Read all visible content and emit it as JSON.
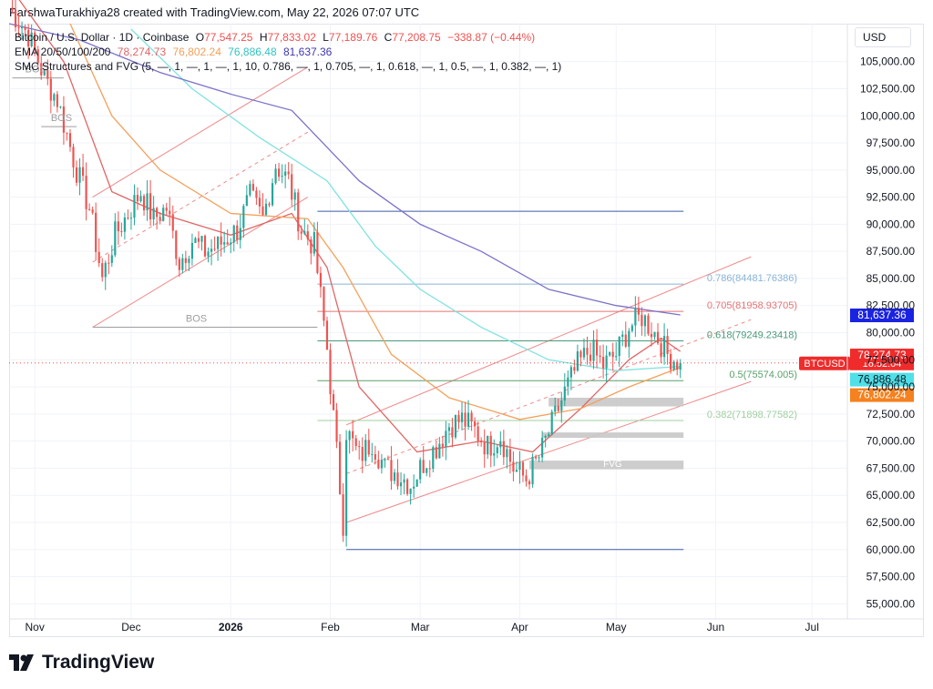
{
  "caption": "ParshwaTurakhiya28 created with TradingView.com, May 22, 2026 07:07 UTC",
  "legend": {
    "symbol": "Bitcoin / U.S. Dollar · 1D · Coinbase",
    "open_label": "O",
    "open": "77,547.25",
    "high_label": "H",
    "high": "77,833.02",
    "low_label": "L",
    "low": "77,189.76",
    "close_label": "C",
    "close": "77,208.75",
    "change": "−338.87 (−0.44%)",
    "ema_label": "EMA 20/50/100/200",
    "ema20": "78,274.73",
    "ema50": "76,802.24",
    "ema100": "76,886.48",
    "ema200": "81,637.36",
    "smc": "SMC Structures and FVG (5, —, 1, —, 1, —, 1, 10, 0.786, —, 1, 0.705, —, 1, 0.618, —, 1, 0.5, —, 1, 0.382, —, 1)"
  },
  "currency": "USD",
  "brand": "TradingView",
  "colors": {
    "up": "#26a69a",
    "down": "#ef5350",
    "ema20": "#e06666",
    "ema50": "#f5a05a",
    "ema100": "#7fe3e0",
    "ema200": "#7b72c9",
    "channel": "#ef8a8a",
    "fib786": "#8ab4d8",
    "fib705": "#e57373",
    "fib618": "#4a9a78",
    "fib5": "#5aa06a",
    "fib382": "#9fcf9f",
    "bos": "#9e9e9e",
    "fvg": "#c8c8c8",
    "blue_line": "#3f5aa8"
  },
  "chart_data": {
    "type": "candlestick",
    "title": "Bitcoin / U.S. Dollar · 1D · Coinbase",
    "x_range": [
      "2025-10-24",
      "2026-07-12"
    ],
    "y_range": [
      53600,
      108500
    ],
    "y_ticks": [
      55000,
      57500,
      60000,
      62500,
      65000,
      67500,
      70000,
      72500,
      75000,
      77500,
      80000,
      82500,
      85000,
      87500,
      90000,
      92500,
      95000,
      97500,
      100000,
      102500,
      105000
    ],
    "y_tick_labels": [
      "55,000.00",
      "57,500.00",
      "60,000.00",
      "62,500.00",
      "65,000.00",
      "67,500.00",
      "70,000.00",
      "72,500.00",
      "75,000.00",
      "77,500.00",
      "80,000.00",
      "82,500.00",
      "85,000.00",
      "87,500.00",
      "90,000.00",
      "92,500.00",
      "95,000.00",
      "97,500.00",
      "100,000.00",
      "102,500.00",
      "105,000.00"
    ],
    "x_ticks": [
      {
        "date": "2025-11-01",
        "label": "Nov"
      },
      {
        "date": "2025-12-01",
        "label": "Dec"
      },
      {
        "date": "2026-01-01",
        "label": "2026"
      },
      {
        "date": "2026-02-01",
        "label": "Feb"
      },
      {
        "date": "2026-03-01",
        "label": "Mar"
      },
      {
        "date": "2026-04-01",
        "label": "Apr"
      },
      {
        "date": "2026-05-01",
        "label": "May"
      },
      {
        "date": "2026-06-01",
        "label": "Jun"
      },
      {
        "date": "2026-07-01",
        "label": "Jul"
      }
    ],
    "close_path": [
      [
        "2025-10-24",
        110000
      ],
      [
        "2025-10-30",
        107500
      ],
      [
        "2025-11-04",
        103500
      ],
      [
        "2025-11-08",
        101500
      ],
      [
        "2025-11-14",
        95000
      ],
      [
        "2025-11-18",
        91500
      ],
      [
        "2025-11-22",
        85000
      ],
      [
        "2025-11-26",
        89000
      ],
      [
        "2025-11-30",
        91000
      ],
      [
        "2025-12-04",
        93000
      ],
      [
        "2025-12-08",
        90500
      ],
      [
        "2025-12-12",
        91500
      ],
      [
        "2025-12-16",
        86500
      ],
      [
        "2025-12-20",
        88500
      ],
      [
        "2025-12-24",
        87500
      ],
      [
        "2025-12-28",
        88000
      ],
      [
        "2026-01-03",
        89500
      ],
      [
        "2026-01-07",
        92500
      ],
      [
        "2026-01-11",
        90500
      ],
      [
        "2026-01-15",
        95500
      ],
      [
        "2026-01-19",
        94000
      ],
      [
        "2026-01-23",
        89500
      ],
      [
        "2026-01-27",
        88000
      ],
      [
        "2026-01-31",
        78500
      ],
      [
        "2026-02-05",
        62500
      ],
      [
        "2026-02-06",
        71000
      ],
      [
        "2026-02-10",
        68500
      ],
      [
        "2026-02-14",
        70000
      ],
      [
        "2026-02-18",
        67500
      ],
      [
        "2026-02-22",
        67000
      ],
      [
        "2026-02-26",
        66000
      ],
      [
        "2026-03-02",
        68000
      ],
      [
        "2026-03-06",
        69500
      ],
      [
        "2026-03-10",
        71500
      ],
      [
        "2026-03-14",
        72000
      ],
      [
        "2026-03-18",
        71000
      ],
      [
        "2026-03-22",
        69500
      ],
      [
        "2026-03-26",
        70500
      ],
      [
        "2026-03-30",
        67500
      ],
      [
        "2026-04-03",
        66500
      ],
      [
        "2026-04-07",
        68500
      ],
      [
        "2026-04-11",
        71500
      ],
      [
        "2026-04-15",
        74500
      ],
      [
        "2026-04-19",
        77000
      ],
      [
        "2026-04-23",
        78500
      ],
      [
        "2026-04-27",
        77000
      ],
      [
        "2026-05-01",
        78000
      ],
      [
        "2026-05-05",
        80500
      ],
      [
        "2026-05-09",
        81500
      ],
      [
        "2026-05-13",
        80000
      ],
      [
        "2026-05-17",
        78000
      ],
      [
        "2026-05-21",
        77208.75
      ]
    ],
    "emas": [
      {
        "name": "EMA 20",
        "last": 78274.73,
        "points": [
          [
            "2025-10-24",
            112000
          ],
          [
            "2025-11-10",
            105000
          ],
          [
            "2025-11-25",
            93000
          ],
          [
            "2025-12-10",
            91000
          ],
          [
            "2026-01-01",
            89000
          ],
          [
            "2026-01-20",
            91000
          ],
          [
            "2026-01-31",
            86000
          ],
          [
            "2026-02-10",
            75000
          ],
          [
            "2026-02-28",
            69000
          ],
          [
            "2026-03-20",
            70000
          ],
          [
            "2026-04-05",
            69000
          ],
          [
            "2026-04-20",
            73000
          ],
          [
            "2026-05-05",
            77500
          ],
          [
            "2026-05-15",
            79500
          ],
          [
            "2026-05-21",
            78274.73
          ]
        ]
      },
      {
        "name": "EMA 50",
        "last": 76802.24,
        "points": [
          [
            "2025-11-12",
            108500
          ],
          [
            "2025-11-25",
            100000
          ],
          [
            "2025-12-10",
            95000
          ],
          [
            "2026-01-01",
            91000
          ],
          [
            "2026-01-25",
            90500
          ],
          [
            "2026-02-05",
            86000
          ],
          [
            "2026-02-20",
            78000
          ],
          [
            "2026-03-10",
            74000
          ],
          [
            "2026-04-01",
            72000
          ],
          [
            "2026-04-20",
            73000
          ],
          [
            "2026-05-05",
            75000
          ],
          [
            "2026-05-21",
            76802.24
          ]
        ]
      },
      {
        "name": "EMA 100",
        "last": 76886.48,
        "points": [
          [
            "2025-12-01",
            108000
          ],
          [
            "2025-12-20",
            102500
          ],
          [
            "2026-01-10",
            98000
          ],
          [
            "2026-01-31",
            94000
          ],
          [
            "2026-02-15",
            88000
          ],
          [
            "2026-03-01",
            84000
          ],
          [
            "2026-03-20",
            80500
          ],
          [
            "2026-04-10",
            77500
          ],
          [
            "2026-05-01",
            76500
          ],
          [
            "2026-05-21",
            76886.48
          ]
        ]
      },
      {
        "name": "EMA 200",
        "last": 81637.36,
        "points": [
          [
            "2025-10-24",
            108500
          ],
          [
            "2025-11-15",
            107000
          ],
          [
            "2025-12-10",
            104000
          ],
          [
            "2026-01-01",
            102000
          ],
          [
            "2026-01-20",
            100500
          ],
          [
            "2026-02-10",
            94000
          ],
          [
            "2026-03-01",
            90000
          ],
          [
            "2026-03-20",
            87500
          ],
          [
            "2026-04-10",
            84000
          ],
          [
            "2026-05-01",
            82500
          ],
          [
            "2026-05-21",
            81637.36
          ]
        ]
      }
    ],
    "fib_levels": [
      {
        "ratio": "0.786",
        "value": "84481.76386"
      },
      {
        "ratio": "0.705",
        "value": "81958.93705"
      },
      {
        "ratio": "0.618",
        "value": "79249.23418"
      },
      {
        "ratio": "0.5",
        "value": "75574.005"
      },
      {
        "ratio": "0.382",
        "value": "71898.77582"
      }
    ],
    "bos_labels": [
      "BOS",
      "BOS",
      "BOS"
    ],
    "fvg_label": "FVG",
    "price_labels": [
      {
        "text": "81,637.36",
        "value": 81637.36,
        "color": "#1a23e0",
        "text_color": "#ffffff"
      },
      {
        "text": "78,274.73",
        "value": 78274.73,
        "color": "#ef2b2b",
        "text_color": "#ffffff"
      },
      {
        "text": "76,886.48",
        "value": 76886.48,
        "color": "#4fe0e8",
        "text_color": "#131722"
      },
      {
        "text": "76,802.24",
        "value": 76802.24,
        "color": "#f5811f",
        "text_color": "#ffffff"
      }
    ],
    "ticker_label": {
      "symbol": "BTCUSD",
      "time": "16:52:04",
      "value": 77208.75
    }
  }
}
